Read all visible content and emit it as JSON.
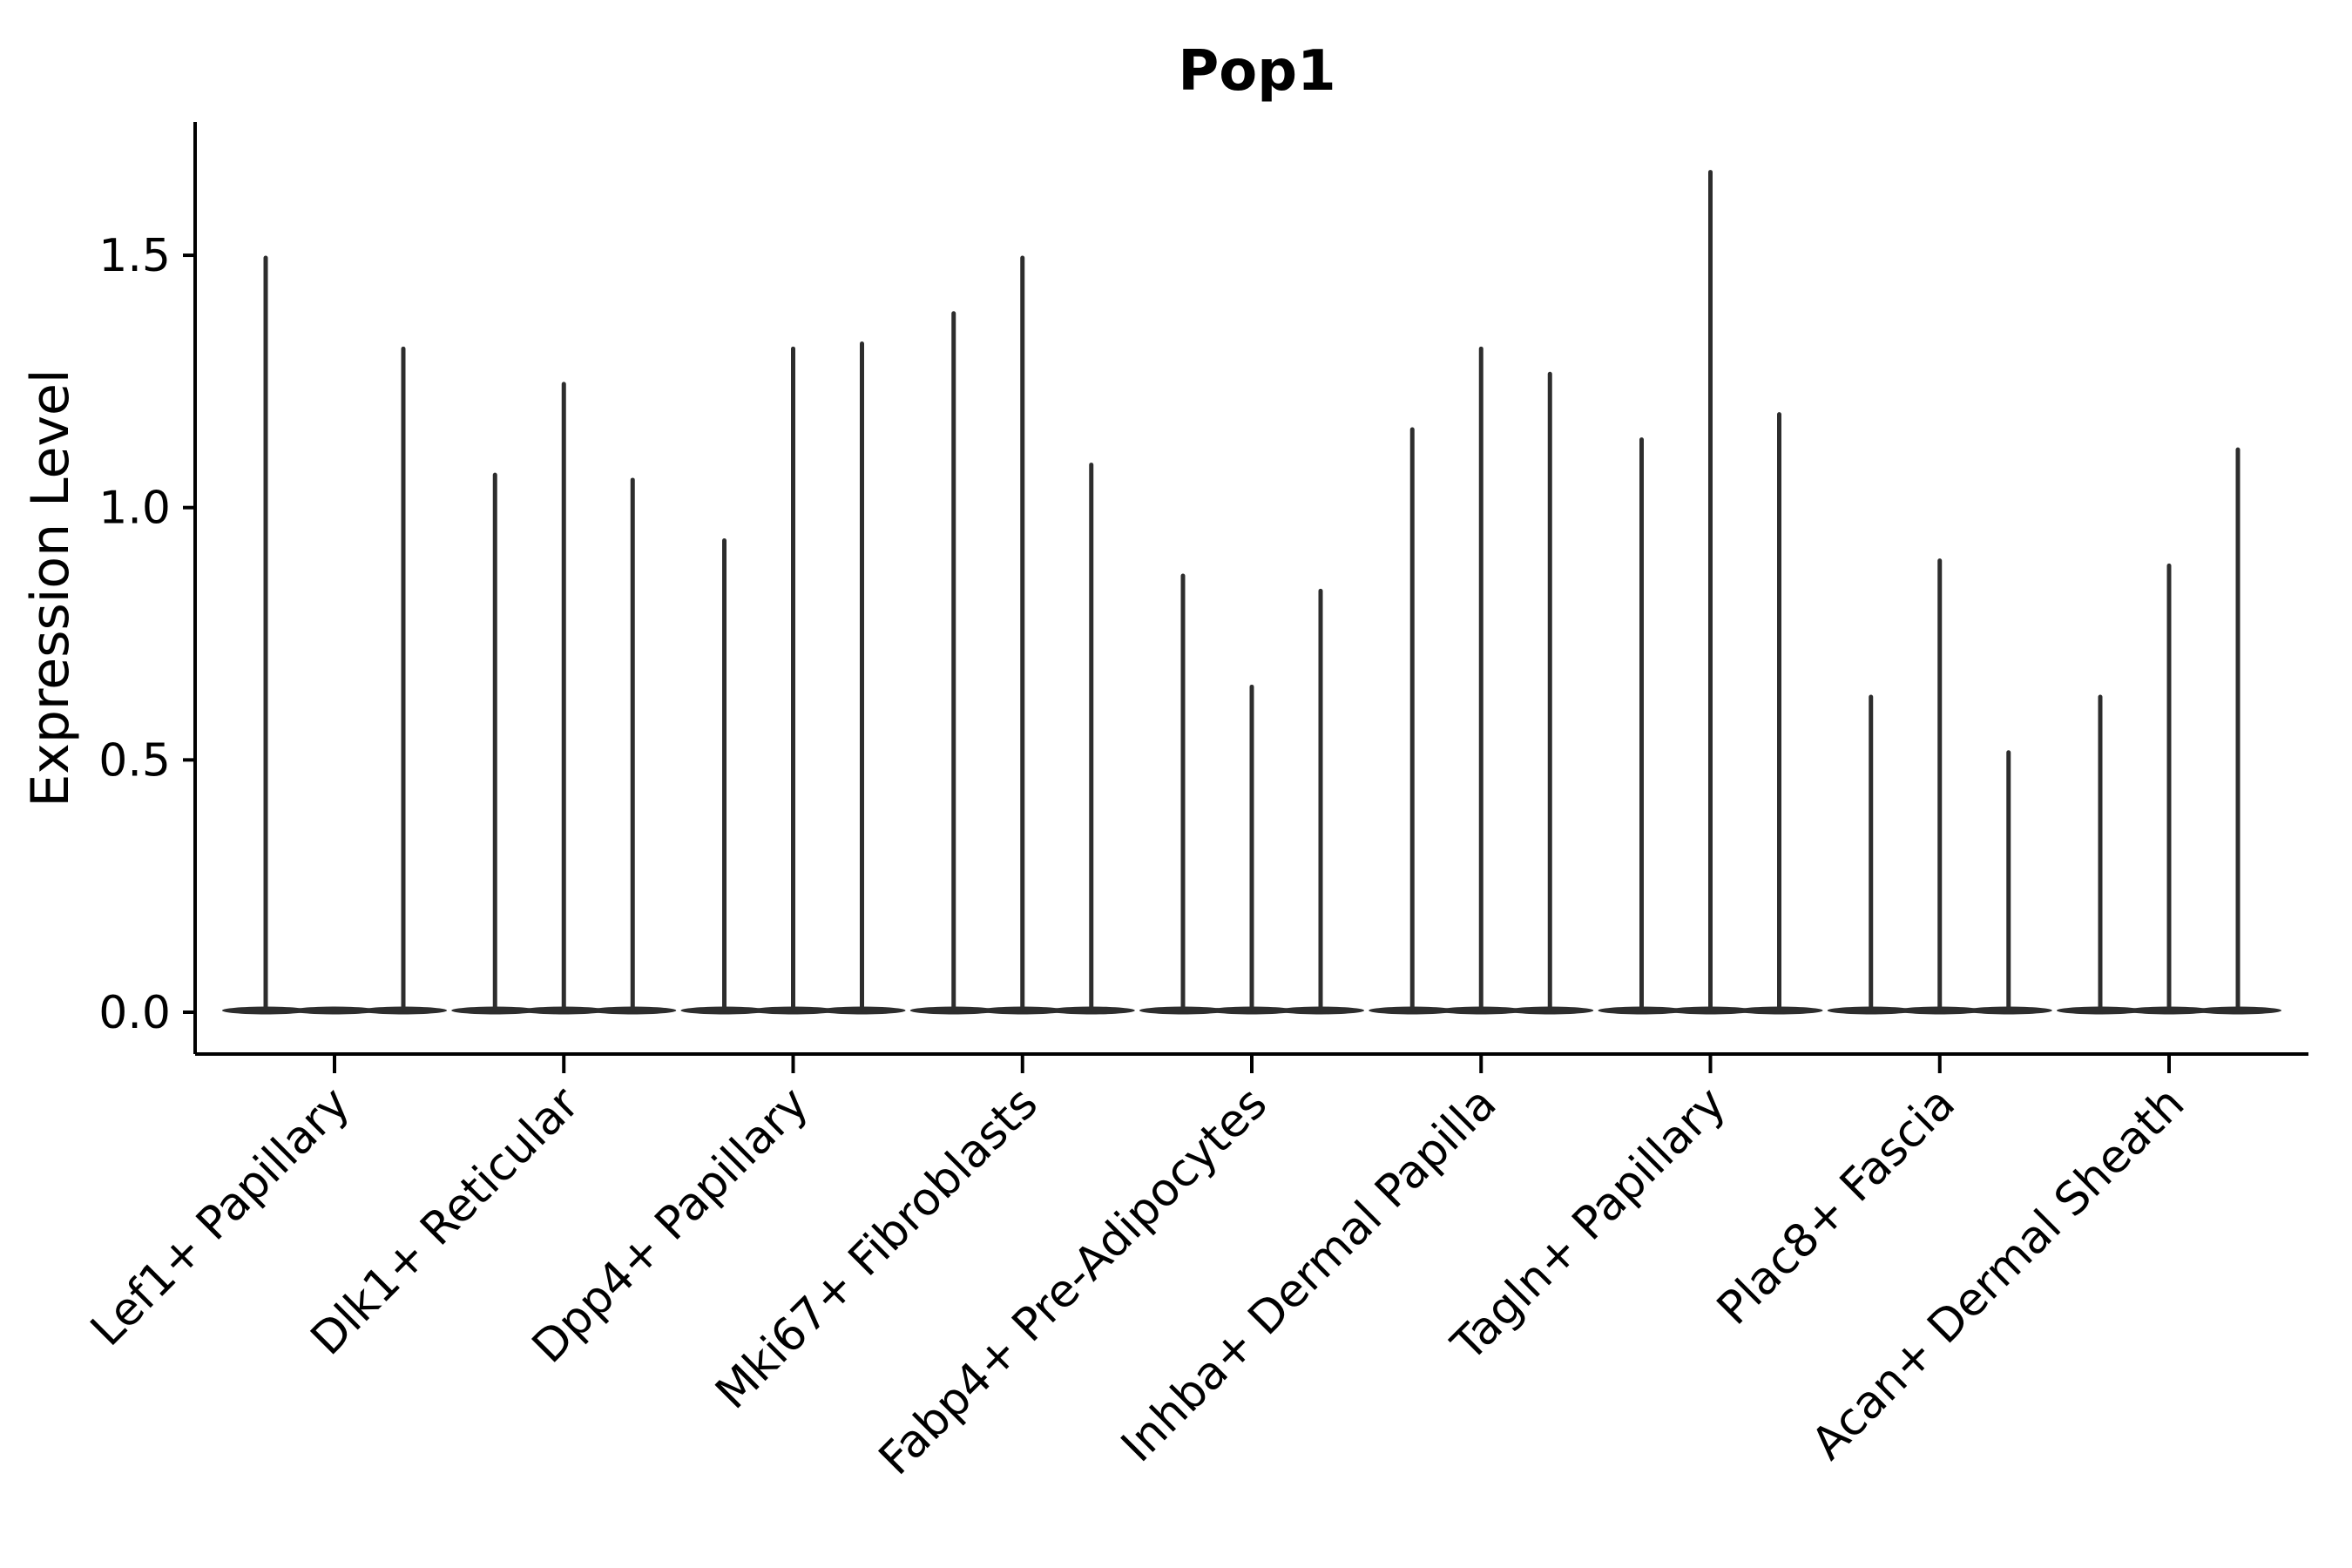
{
  "figure": {
    "title": "Pop1",
    "background_color": "#ffffff"
  },
  "chart_data": {
    "type": "violin",
    "title": "Pop1",
    "xlabel": "",
    "ylabel": "Expression Level",
    "categories": [
      "Lef1+ Papillary",
      "Dlk1+ Reticular",
      "Dpp4+ Papillary",
      "Mki67+ Fibroblasts",
      "Fabp4+ Pre-Adipocytes",
      "Inhba+ Dermal Papilla",
      "Tagln+ Papillary",
      "Plac8+ Fascia",
      "Acan+ Dermal Sheath"
    ],
    "violins_per_category": 3,
    "values_per_category": [
      [
        1.5,
        0.0,
        1.32
      ],
      [
        1.07,
        1.25,
        1.06
      ],
      [
        0.94,
        1.32,
        1.33
      ],
      [
        1.39,
        1.5,
        1.09
      ],
      [
        0.87,
        0.65,
        0.84
      ],
      [
        1.16,
        1.32,
        1.27
      ],
      [
        1.14,
        1.67,
        1.19
      ],
      [
        0.63,
        0.9,
        0.52
      ],
      [
        0.63,
        0.89,
        1.12
      ]
    ],
    "y_tick_values": [
      0.0,
      0.5,
      1.0,
      1.5
    ],
    "y_tick_labels": [
      "0.0",
      "0.5",
      "1.0",
      "1.5"
    ],
    "ylim": [
      -0.08,
      1.77
    ],
    "x_tick_rotation_deg": 45,
    "grid": false,
    "legend_position": "none",
    "colors": {
      "violin": "#2d2d2d",
      "axis": "#000000",
      "text": "#000000"
    }
  }
}
